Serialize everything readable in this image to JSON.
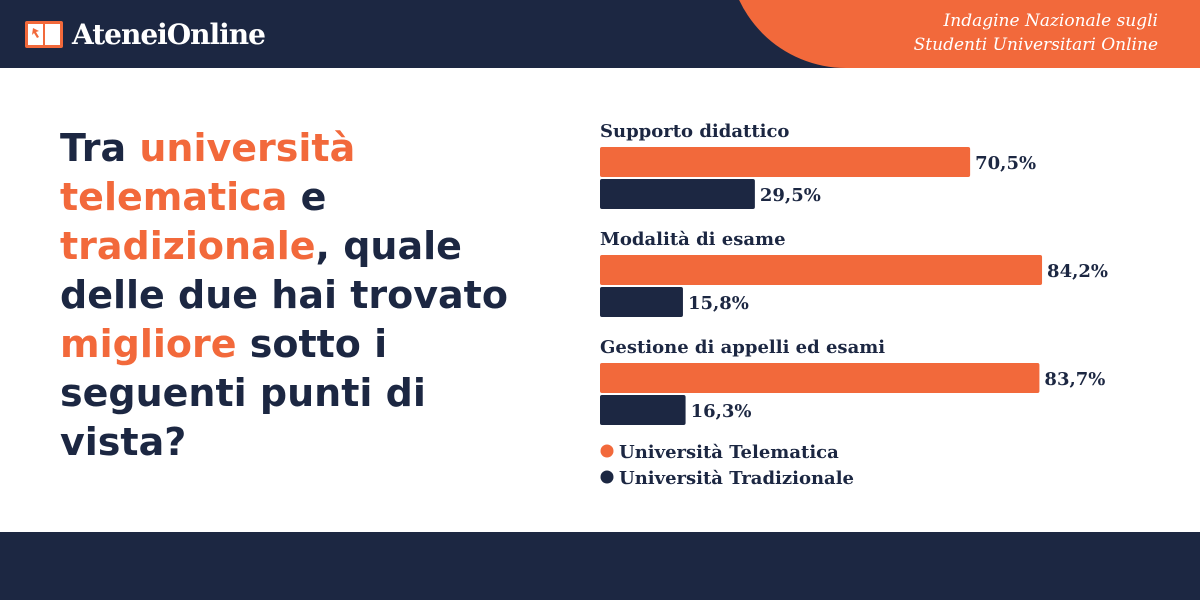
{
  "brand": {
    "name": "AteneiOnline"
  },
  "survey": {
    "line1": "Indagine Nazionale sugli",
    "line2": "Studenti Universitari Online"
  },
  "question": {
    "s1": "Tra ",
    "h1": "università telematica",
    "s2": " e ",
    "h2": "tradizionale",
    "s3": ", quale delle due hai trovato ",
    "h3": "migliore",
    "s4": " sotto i seguenti punti di vista?"
  },
  "colors": {
    "accent": "#f2693b",
    "dark": "#1c2742",
    "background": "#ffffff"
  },
  "chart_data": {
    "type": "bar",
    "orientation": "horizontal",
    "categories": [
      "Supporto didattico",
      "Modalità di esame",
      "Gestione di appelli ed esami"
    ],
    "series": [
      {
        "name": "Università Telematica",
        "color": "#f2693b",
        "values": [
          70.5,
          84.2,
          83.7
        ],
        "labels": [
          "70,5%",
          "84,2%",
          "83,7%"
        ]
      },
      {
        "name": "Università Tradizionale",
        "color": "#1c2742",
        "values": [
          29.5,
          15.8,
          16.3
        ],
        "labels": [
          "29,5%",
          "15,8%",
          "16,3%"
        ]
      }
    ],
    "xlim": [
      0,
      100
    ],
    "legend": "bottom-left"
  }
}
